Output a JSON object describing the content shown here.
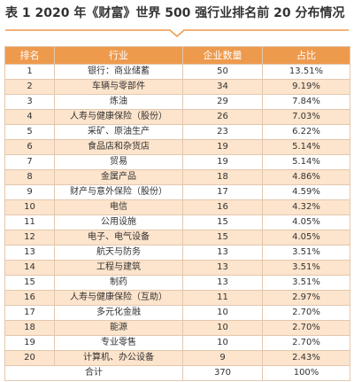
{
  "title": "表 1 2020 年《财富》世界 500 强行业排名前 20 分布情况",
  "table": {
    "header": [
      "排名",
      "行业",
      "企业数量",
      "占比"
    ],
    "rows": [
      [
        "1",
        "银行：商业储蓄",
        "50",
        "13.51%"
      ],
      [
        "2",
        "车辆与零部件",
        "34",
        "9.19%"
      ],
      [
        "3",
        "炼油",
        "29",
        "7.84%"
      ],
      [
        "4",
        "人寿与健康保险（股份）",
        "26",
        "7.03%"
      ],
      [
        "5",
        "采矿、原油生产",
        "23",
        "6.22%"
      ],
      [
        "6",
        "食品店和杂货店",
        "19",
        "5.14%"
      ],
      [
        "7",
        "贸易",
        "19",
        "5.14%"
      ],
      [
        "8",
        "金属产品",
        "18",
        "4.86%"
      ],
      [
        "9",
        "财产与意外保险（股份）",
        "17",
        "4.59%"
      ],
      [
        "10",
        "电信",
        "16",
        "4.32%"
      ],
      [
        "11",
        "公用设施",
        "15",
        "4.05%"
      ],
      [
        "12",
        "电子、电气设备",
        "15",
        "4.05%"
      ],
      [
        "13",
        "航天与防务",
        "13",
        "3.51%"
      ],
      [
        "14",
        "工程与建筑",
        "13",
        "3.51%"
      ],
      [
        "15",
        "制药",
        "13",
        "3.51%"
      ],
      [
        "16",
        "人寿与健康保险（互助）",
        "11",
        "2.97%"
      ],
      [
        "17",
        "多元化金融",
        "10",
        "2.70%"
      ],
      [
        "18",
        "能源",
        "10",
        "2.70%"
      ],
      [
        "19",
        "专业零售",
        "10",
        "2.70%"
      ],
      [
        "20",
        "计算机、办公设备",
        "9",
        "2.43%"
      ]
    ],
    "total": [
      "合计",
      "370",
      "100%"
    ]
  }
}
